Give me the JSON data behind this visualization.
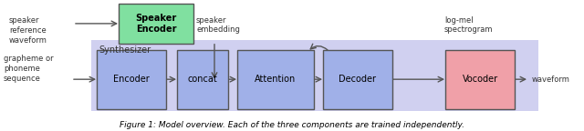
{
  "fig_width": 6.4,
  "fig_height": 1.44,
  "dpi": 100,
  "bg_color": "#ffffff",
  "synthesizer_bg": "#d0d0f0",
  "synthesizer_label": "Synthesizer",
  "speaker_encoder_color": "#80e0a0",
  "synthesizer_box_color": "#a0b0e8",
  "vocoder_color": "#f0a0a8",
  "speaker_encoder_label": "Speaker\nEncoder",
  "encoder_label": "Encoder",
  "concat_label": "concat",
  "attention_label": "Attention",
  "decoder_label": "Decoder",
  "vocoder_label": "Vocoder",
  "left_text1": "speaker\nreference\nwaveform",
  "left_text2": "grapheme or\nphoneme\nsequence",
  "speaker_embedding_label": "speaker\nembedding",
  "log_mel_label": "log-mel\nspectrogram",
  "waveform_label": "waveform",
  "caption": "Figure 1: Model overview. Each of the three components are trained independently.",
  "arrow_color": "#555555",
  "text_color": "#333333",
  "box_edge_color": "#555555"
}
